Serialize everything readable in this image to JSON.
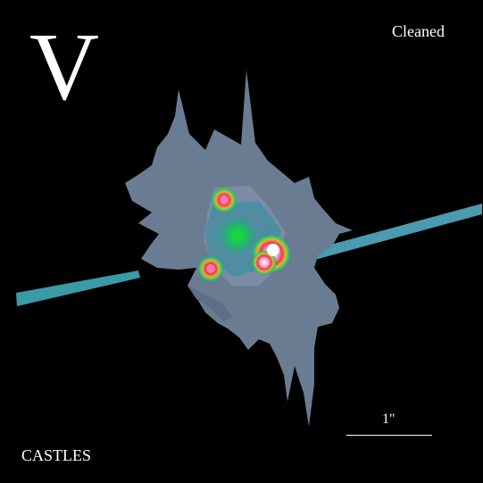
{
  "image": {
    "band": "V",
    "status": "Cleaned",
    "credit": "CASTLES",
    "scale_label": "1\"",
    "colors": {
      "background": "#000000",
      "halo": "#6b7f96",
      "streak": "#3fa2a6",
      "core_green": "#28c864",
      "core_red": "#e0405a",
      "core_white": "#ffffff"
    }
  }
}
